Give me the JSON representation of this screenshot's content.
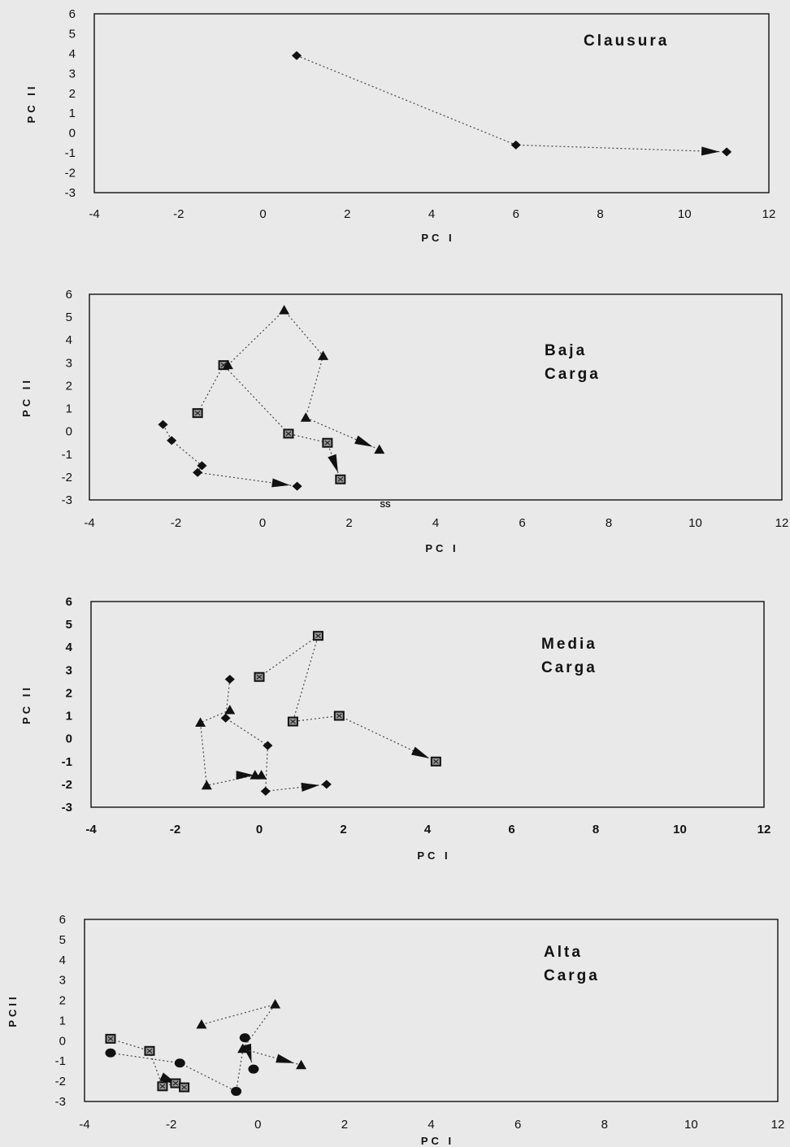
{
  "chart_data": [
    {
      "type": "scatter",
      "title_lines": [
        "Clausura"
      ],
      "xlabel": "PC I",
      "ylabel": "PC II",
      "xlim": [
        -4,
        12
      ],
      "ylim": [
        -3,
        6
      ],
      "xticks": [
        -4,
        -2,
        0,
        2,
        4,
        6,
        8,
        10,
        12
      ],
      "yticks": [
        -3,
        -2,
        -1,
        0,
        1,
        2,
        3,
        4,
        5,
        6
      ],
      "series": [
        {
          "marker": "diamond",
          "points": [
            [
              0.8,
              3.9
            ],
            [
              6.0,
              -0.6
            ],
            [
              11.0,
              -0.95
            ]
          ]
        }
      ],
      "annotations": []
    },
    {
      "type": "scatter",
      "title_lines": [
        "Baja",
        "Carga"
      ],
      "xlabel": "PC I",
      "ylabel": "PC II",
      "xlim": [
        -4,
        12
      ],
      "ylim": [
        -3,
        6
      ],
      "xticks": [
        -4,
        -2,
        0,
        2,
        4,
        6,
        8,
        10,
        12
      ],
      "yticks": [
        -3,
        -2,
        -1,
        0,
        1,
        2,
        3,
        4,
        5,
        6
      ],
      "series": [
        {
          "marker": "diamond",
          "points": [
            [
              -2.3,
              0.3
            ],
            [
              -2.1,
              -0.4
            ],
            [
              -1.4,
              -1.5
            ],
            [
              -1.5,
              -1.8
            ],
            [
              0.8,
              -2.4
            ]
          ]
        },
        {
          "marker": "square",
          "points": [
            [
              -1.5,
              0.8
            ],
            [
              -0.9,
              2.9
            ],
            [
              0.6,
              -0.1
            ],
            [
              1.5,
              -0.5
            ],
            [
              1.8,
              -2.1
            ]
          ]
        },
        {
          "marker": "triangle",
          "points": [
            [
              -0.8,
              2.9
            ],
            [
              0.5,
              5.3
            ],
            [
              1.4,
              3.3
            ],
            [
              1.0,
              0.6
            ],
            [
              2.7,
              -0.8
            ]
          ]
        }
      ],
      "annotations": [
        "SS"
      ]
    },
    {
      "type": "scatter",
      "title_lines": [
        "Media",
        "Carga"
      ],
      "xlabel": "PC I",
      "ylabel": "PC II",
      "xlim": [
        -4,
        12
      ],
      "ylim": [
        -3,
        6
      ],
      "xticks": [
        -4,
        -2,
        0,
        2,
        4,
        6,
        8,
        10,
        12
      ],
      "yticks": [
        -3,
        -2,
        -1,
        0,
        1,
        2,
        3,
        4,
        5,
        6
      ],
      "series": [
        {
          "marker": "diamond",
          "points": [
            [
              -0.7,
              2.6
            ],
            [
              -0.8,
              0.9
            ],
            [
              0.2,
              -0.3
            ],
            [
              0.15,
              -2.3
            ],
            [
              1.6,
              -2.0
            ]
          ]
        },
        {
          "marker": "square",
          "points": [
            [
              0.0,
              2.7
            ],
            [
              1.4,
              4.5
            ],
            [
              0.8,
              0.75
            ],
            [
              1.9,
              1.0
            ],
            [
              4.2,
              -1.0
            ]
          ]
        },
        {
          "marker": "triangle",
          "points": [
            [
              -0.7,
              1.25
            ],
            [
              -1.4,
              0.7
            ],
            [
              -1.25,
              -2.05
            ],
            [
              -0.1,
              -1.6
            ],
            [
              0.05,
              -1.6
            ]
          ]
        }
      ],
      "annotations": []
    },
    {
      "type": "scatter",
      "title_lines": [
        "Alta",
        "Carga"
      ],
      "xlabel": "PC I",
      "ylabel": "PCII",
      "xlim": [
        -4,
        12
      ],
      "ylim": [
        -3,
        6
      ],
      "xticks": [
        -4,
        -2,
        0,
        2,
        4,
        6,
        8,
        10,
        12
      ],
      "yticks": [
        -3,
        -2,
        -1,
        0,
        1,
        2,
        3,
        4,
        5,
        6
      ],
      "series": [
        {
          "marker": "square",
          "points": [
            [
              -3.4,
              0.1
            ],
            [
              -2.5,
              -0.5
            ],
            [
              -2.2,
              -2.25
            ],
            [
              -1.9,
              -2.1
            ],
            [
              -1.7,
              -2.3
            ]
          ]
        },
        {
          "marker": "circle",
          "points": [
            [
              -3.4,
              -0.6
            ],
            [
              -1.8,
              -1.1
            ],
            [
              -0.5,
              -2.5
            ],
            [
              -0.3,
              0.15
            ],
            [
              -0.1,
              -1.4
            ]
          ]
        },
        {
          "marker": "triangle",
          "points": [
            [
              -1.3,
              0.8
            ],
            [
              0.4,
              1.8
            ],
            [
              -0.35,
              -0.4
            ],
            [
              1.0,
              -1.2
            ]
          ]
        }
      ],
      "annotations": []
    }
  ]
}
